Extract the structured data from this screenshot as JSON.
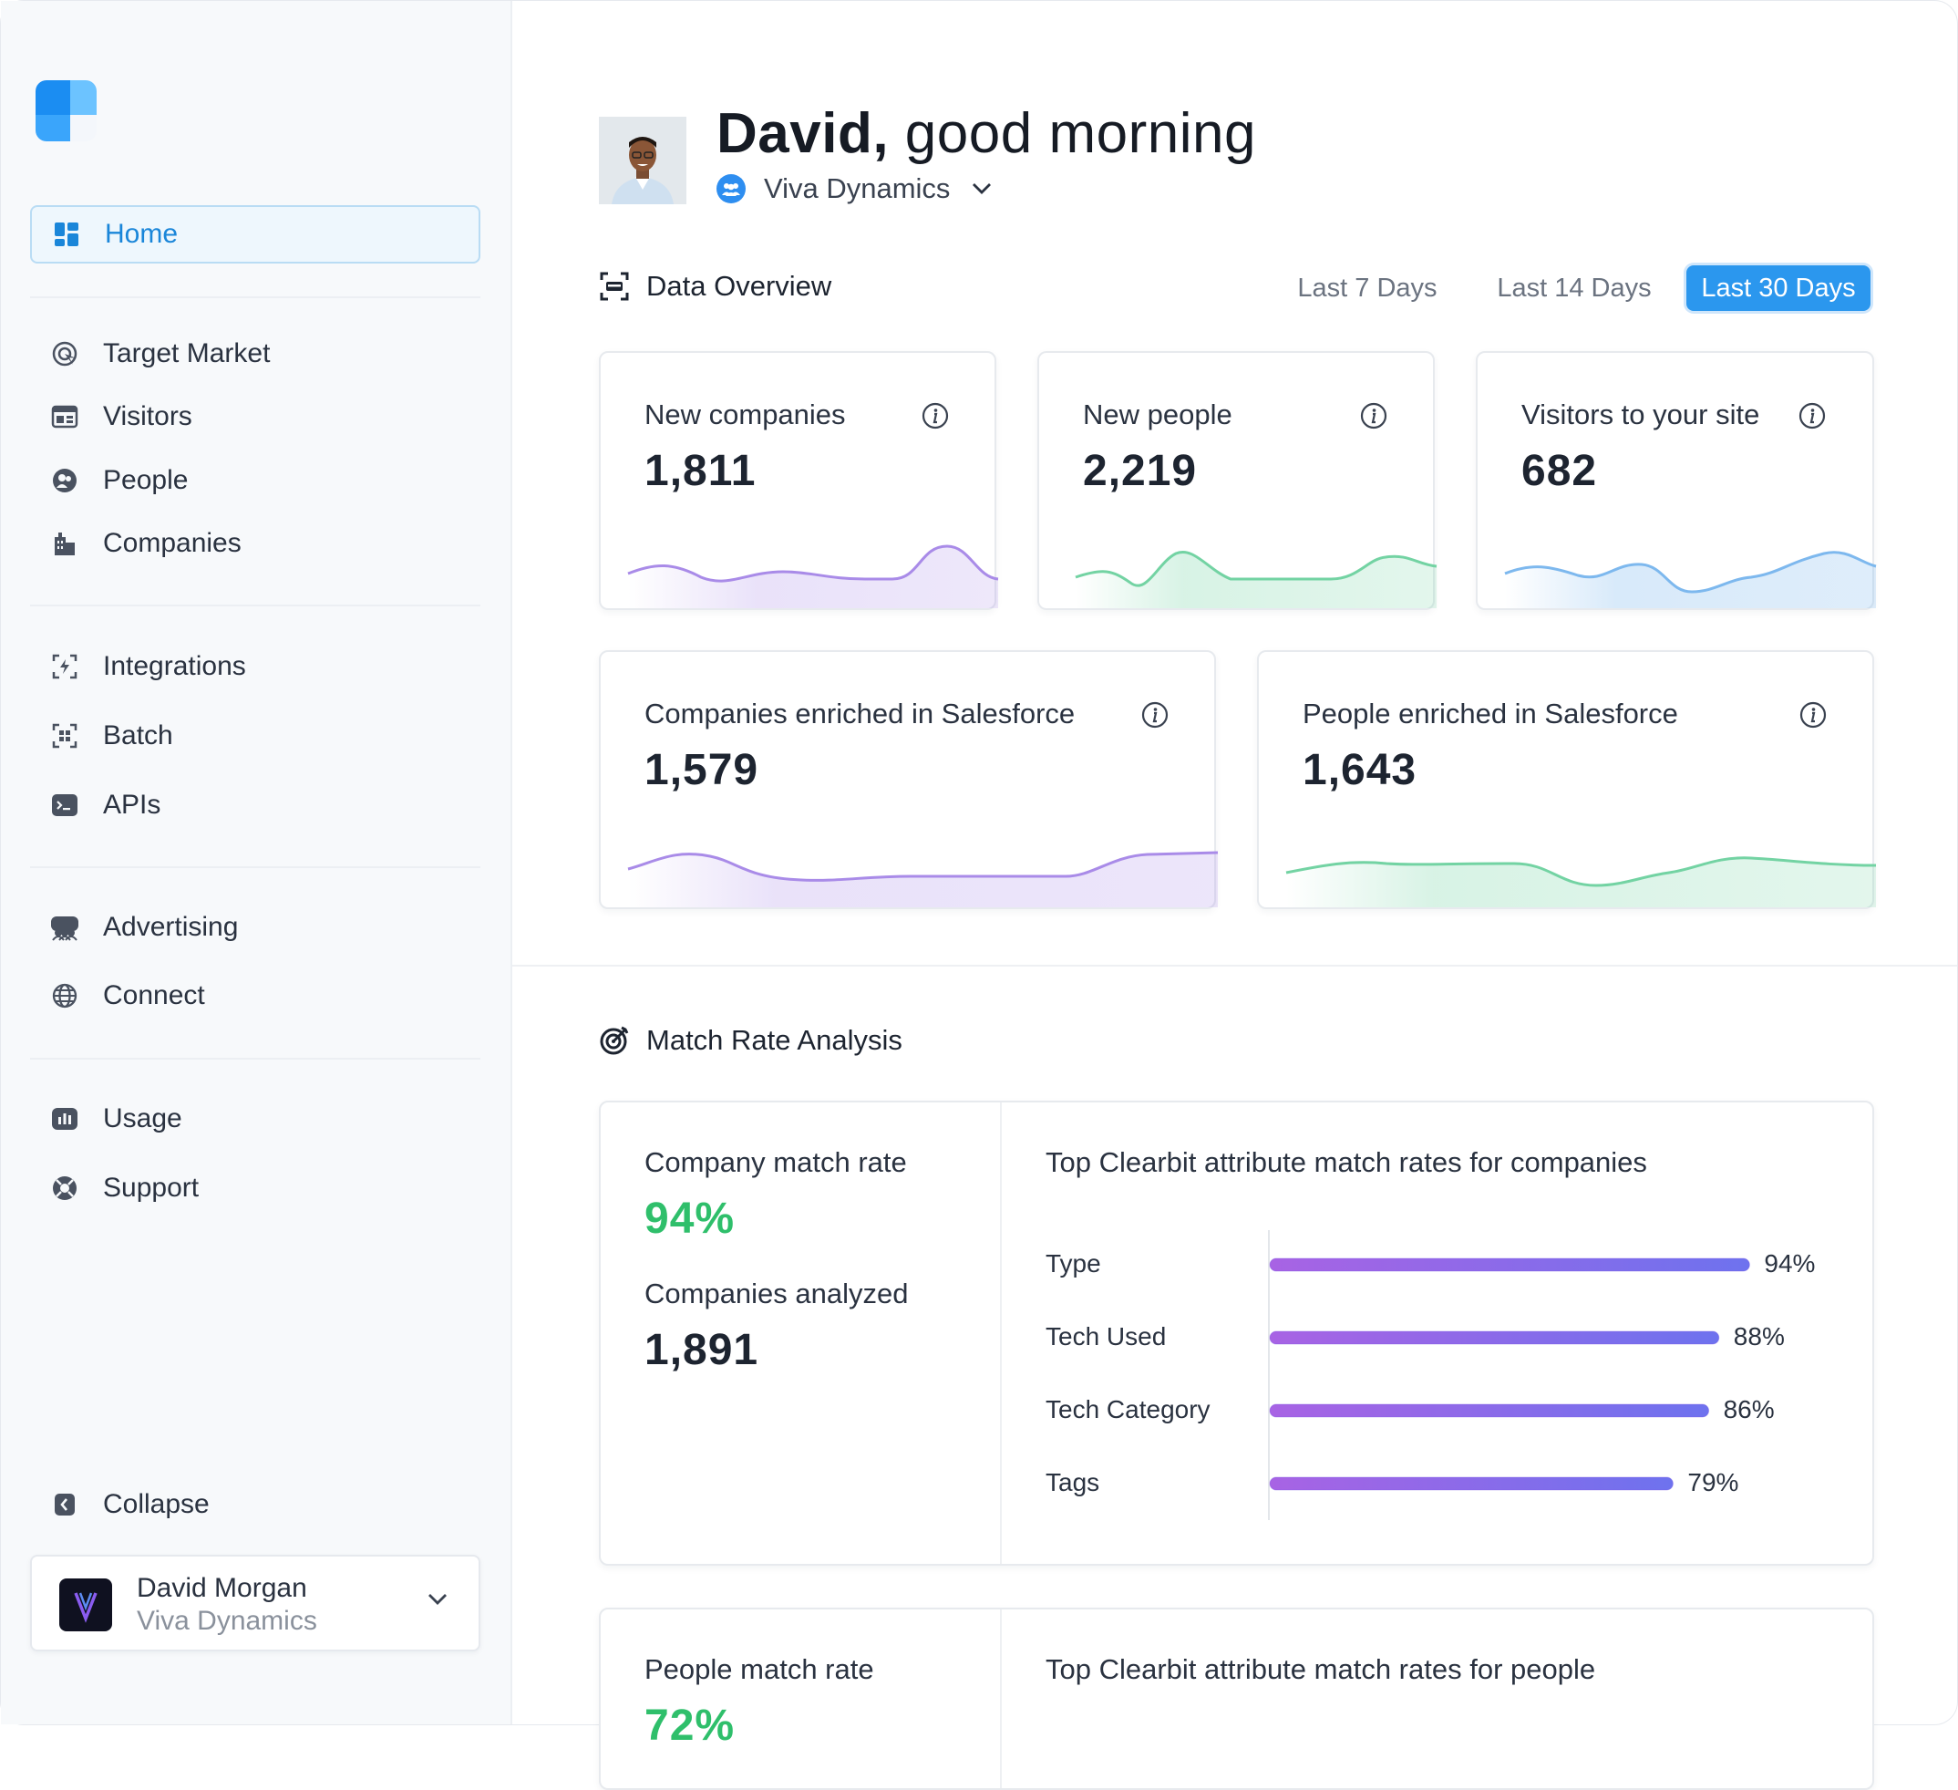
{
  "sidebar": {
    "home": "Home",
    "items_group1": [
      "Target Market",
      "Visitors",
      "People",
      "Companies"
    ],
    "items_group2": [
      "Integrations",
      "Batch",
      "APIs"
    ],
    "items_group3": [
      "Advertising",
      "Connect"
    ],
    "items_group4": [
      "Usage",
      "Support"
    ],
    "collapse": "Collapse",
    "user": {
      "name": "David Morgan",
      "org": "Viva Dynamics"
    }
  },
  "header": {
    "greeting_name": "David,",
    "greeting_rest": "good morning",
    "org": "Viva Dynamics"
  },
  "overview": {
    "title": "Data Overview",
    "ranges": [
      "Last 7 Days",
      "Last 14 Days",
      "Last 30 Days"
    ],
    "selected_range": "Last 30 Days",
    "cards": [
      {
        "label": "New companies",
        "value": "1,811",
        "color": "#a98be8"
      },
      {
        "label": "New people",
        "value": "2,219",
        "color": "#73d3a3"
      },
      {
        "label": "Visitors to your site",
        "value": "682",
        "color": "#7db8ee"
      },
      {
        "label": "Companies enriched in Salesforce",
        "value": "1,579",
        "color": "#a98be8"
      },
      {
        "label": "People enriched in Salesforce",
        "value": "1,643",
        "color": "#73d3a3"
      }
    ]
  },
  "match_rate": {
    "title": "Match Rate Analysis",
    "company_rate_label": "Company match rate",
    "company_rate": "94%",
    "companies_analyzed_label": "Companies analyzed",
    "companies_analyzed": "1,891",
    "company_chart_title": "Top Clearbit attribute match rates for companies",
    "people_rate_label": "People match rate",
    "people_rate": "72%",
    "people_chart_title": "Top Clearbit attribute match rates for people",
    "accent_green": "#2fbf6b"
  },
  "chart_data": {
    "type": "bar",
    "orientation": "horizontal",
    "title": "Top Clearbit attribute match rates for companies",
    "categories": [
      "Type",
      "Tech Used",
      "Tech Category",
      "Tags"
    ],
    "values": [
      94,
      88,
      86,
      79
    ],
    "value_labels": [
      "94%",
      "88%",
      "86%",
      "79%"
    ],
    "xlim": [
      0,
      100
    ]
  }
}
